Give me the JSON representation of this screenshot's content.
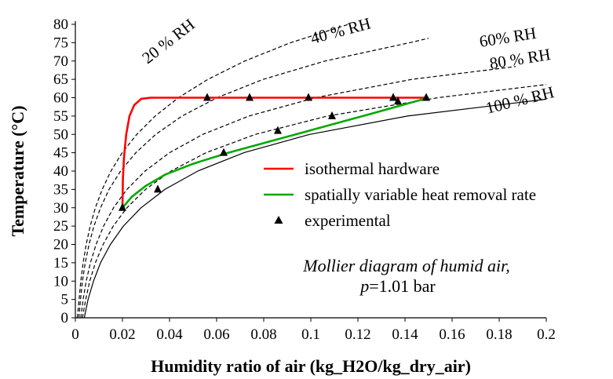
{
  "chart_data": {
    "type": "line",
    "title": "",
    "xlabel": "Humidity ratio of air (kg_H2O/kg_dry_air)",
    "ylabel": "Temperature (°C)",
    "xlim": [
      0,
      0.2
    ],
    "ylim": [
      0,
      80
    ],
    "x_ticks": [
      "0",
      "0.02",
      "0.04",
      "0.06",
      "0.08",
      "0.1",
      "0.12",
      "0.14",
      "0.16",
      "0.18",
      "0.2"
    ],
    "y_ticks": [
      "0",
      "5",
      "10",
      "15",
      "20",
      "25",
      "30",
      "35",
      "40",
      "45",
      "50",
      "55",
      "60",
      "65",
      "70",
      "75",
      "80"
    ],
    "grid": false,
    "legend_position": "center-right",
    "rh_curves": [
      {
        "label": "20 % RH",
        "style": "dashed",
        "points": [
          [
            0.0008,
            0
          ],
          [
            0.0016,
            5
          ],
          [
            0.0023,
            10
          ],
          [
            0.0033,
            15
          ],
          [
            0.0046,
            20
          ],
          [
            0.0063,
            25
          ],
          [
            0.0085,
            30
          ],
          [
            0.0114,
            35
          ],
          [
            0.0151,
            40
          ],
          [
            0.0199,
            45
          ],
          [
            0.0261,
            50
          ],
          [
            0.0339,
            55
          ],
          [
            0.0438,
            60
          ],
          [
            0.0563,
            65
          ],
          [
            0.0719,
            70
          ],
          [
            0.0914,
            75
          ],
          [
            0.116,
            80
          ]
        ]
      },
      {
        "label": "40 % RH",
        "style": "dashed",
        "points": [
          [
            0.0015,
            0
          ],
          [
            0.0022,
            5
          ],
          [
            0.003,
            10
          ],
          [
            0.0042,
            15
          ],
          [
            0.0058,
            20
          ],
          [
            0.0079,
            25
          ],
          [
            0.0107,
            30
          ],
          [
            0.0143,
            35
          ],
          [
            0.0192,
            40
          ],
          [
            0.0257,
            45
          ],
          [
            0.0341,
            50
          ],
          [
            0.0453,
            55
          ],
          [
            0.0602,
            60
          ],
          [
            0.0798,
            65
          ],
          [
            0.106,
            70
          ],
          [
            0.142,
            75
          ],
          [
            0.15,
            76.2
          ]
        ]
      },
      {
        "label": "60% RH",
        "style": "dashed",
        "points": [
          [
            0.0023,
            0
          ],
          [
            0.0033,
            5
          ],
          [
            0.0046,
            10
          ],
          [
            0.0064,
            15
          ],
          [
            0.0088,
            20
          ],
          [
            0.012,
            25
          ],
          [
            0.0162,
            30
          ],
          [
            0.0219,
            35
          ],
          [
            0.0296,
            40
          ],
          [
            0.04,
            45
          ],
          [
            0.0541,
            50
          ],
          [
            0.0737,
            55
          ],
          [
            0.102,
            60
          ],
          [
            0.143,
            65
          ],
          [
            0.187,
            68.5
          ]
        ]
      },
      {
        "label": "80 % RH",
        "style": "dashed",
        "points": [
          [
            0.003,
            0
          ],
          [
            0.0044,
            5
          ],
          [
            0.0061,
            10
          ],
          [
            0.0085,
            15
          ],
          [
            0.0118,
            20
          ],
          [
            0.0161,
            25
          ],
          [
            0.0219,
            30
          ],
          [
            0.0298,
            35
          ],
          [
            0.0406,
            40
          ],
          [
            0.0555,
            45
          ],
          [
            0.0764,
            50
          ],
          [
            0.107,
            55
          ],
          [
            0.154,
            60
          ],
          [
            0.2,
            63.6
          ]
        ]
      },
      {
        "label": "100 % RH",
        "style": "solid",
        "points": [
          [
            0.0038,
            0
          ],
          [
            0.0054,
            5
          ],
          [
            0.0077,
            10
          ],
          [
            0.0107,
            15
          ],
          [
            0.0149,
            20
          ],
          [
            0.0204,
            25
          ],
          [
            0.0279,
            30
          ],
          [
            0.038,
            35
          ],
          [
            0.052,
            40
          ],
          [
            0.0716,
            45
          ],
          [
            0.0995,
            50
          ],
          [
            0.141,
            55
          ],
          [
            0.2,
            59.6
          ]
        ]
      }
    ],
    "series": [
      {
        "name": "isothermal hardware",
        "color": "#ff0000",
        "style": "line",
        "points": [
          [
            0.02,
            30
          ],
          [
            0.0202,
            38
          ],
          [
            0.0207,
            44
          ],
          [
            0.0216,
            50
          ],
          [
            0.023,
            55
          ],
          [
            0.025,
            58
          ],
          [
            0.028,
            59.7
          ],
          [
            0.032,
            60
          ],
          [
            0.05,
            60
          ],
          [
            0.08,
            60
          ],
          [
            0.1,
            60
          ],
          [
            0.12,
            60
          ],
          [
            0.14,
            60
          ],
          [
            0.15,
            60
          ]
        ]
      },
      {
        "name": "spatially variable heat removal rate",
        "color": "#00aa00",
        "style": "line",
        "points": [
          [
            0.02,
            30
          ],
          [
            0.024,
            33
          ],
          [
            0.03,
            36
          ],
          [
            0.038,
            39
          ],
          [
            0.05,
            42
          ],
          [
            0.065,
            45
          ],
          [
            0.085,
            48.5
          ],
          [
            0.105,
            52
          ],
          [
            0.125,
            55.5
          ],
          [
            0.14,
            58.2
          ],
          [
            0.15,
            60
          ]
        ]
      },
      {
        "name": "experimental",
        "color": "#000000",
        "style": "marker-triangle",
        "points": [
          [
            0.02,
            30
          ],
          [
            0.035,
            35
          ],
          [
            0.063,
            45
          ],
          [
            0.086,
            51
          ],
          [
            0.109,
            55
          ],
          [
            0.137,
            59
          ],
          [
            0.056,
            60
          ],
          [
            0.074,
            60
          ],
          [
            0.099,
            60
          ],
          [
            0.135,
            60
          ],
          [
            0.149,
            60
          ]
        ]
      }
    ],
    "annotation": {
      "line1": "Mollier diagram of humid air,",
      "line2_symbol": "p",
      "line2_rest": "=1.01 bar"
    }
  }
}
